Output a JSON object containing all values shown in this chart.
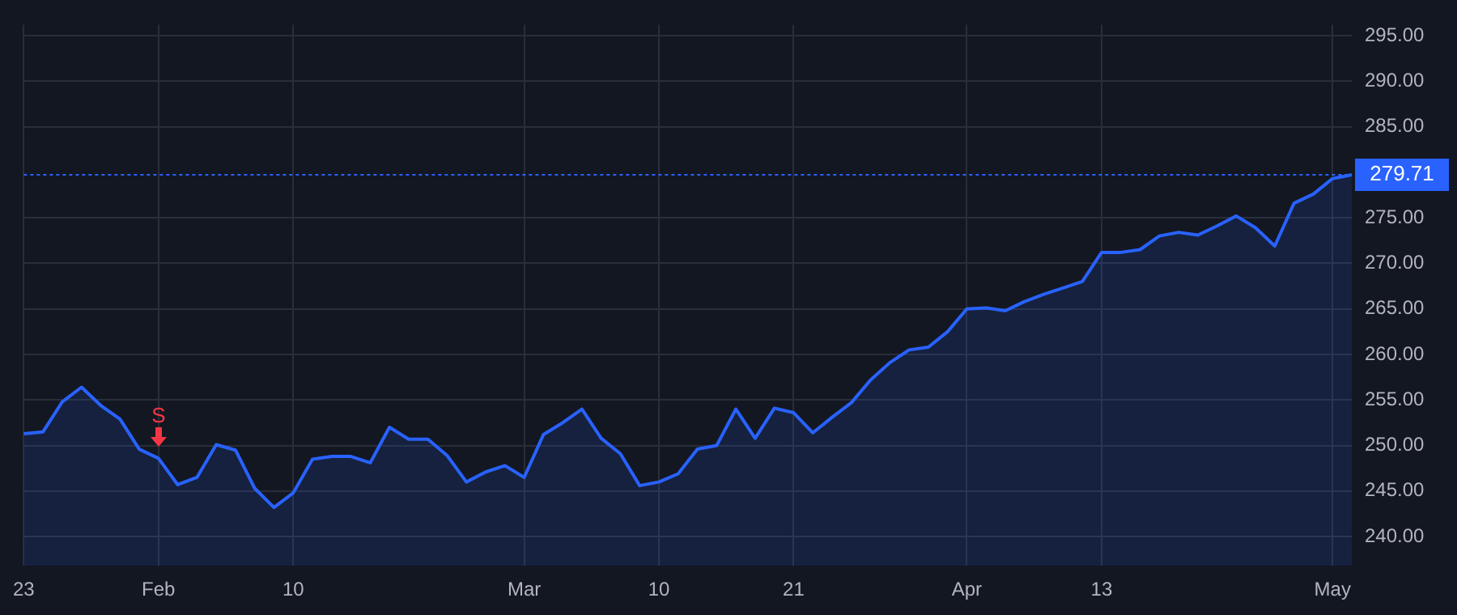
{
  "chart_data": {
    "type": "area",
    "categories": [
      "23",
      null,
      null,
      null,
      null,
      null,
      null,
      "Feb",
      null,
      null,
      null,
      null,
      null,
      null,
      "10",
      null,
      null,
      null,
      null,
      null,
      null,
      null,
      null,
      null,
      null,
      null,
      "Mar",
      null,
      null,
      null,
      null,
      null,
      null,
      "10",
      null,
      null,
      null,
      null,
      null,
      null,
      "21",
      null,
      null,
      null,
      null,
      null,
      null,
      null,
      null,
      "Apr",
      null,
      null,
      null,
      null,
      null,
      null,
      "13",
      null,
      null,
      null,
      null,
      null,
      null,
      null,
      null,
      null,
      null,
      null,
      "May",
      null
    ],
    "series": [
      {
        "color": "#2962ff",
        "values": [
          251.3,
          251.5,
          254.8,
          256.4,
          254.4,
          252.9,
          249.6,
          248.6,
          245.7,
          246.5,
          250.1,
          249.5,
          245.3,
          243.2,
          244.8,
          248.5,
          248.8,
          248.8,
          248.1,
          252.0,
          250.7,
          250.7,
          248.9,
          246.0,
          247.1,
          247.8,
          246.5,
          251.2,
          252.5,
          254.0,
          250.8,
          249.1,
          245.6,
          246.0,
          246.9,
          249.6,
          250.0,
          254.0,
          250.8,
          254.1,
          253.6,
          251.4,
          253.1,
          254.7,
          257.2,
          259.1,
          260.5,
          260.8,
          262.5,
          265.0,
          265.1,
          264.8,
          265.8,
          266.6,
          267.3,
          268.0,
          271.2,
          271.2,
          271.5,
          273.0,
          273.4,
          273.1,
          274.1,
          275.2,
          273.9,
          271.9,
          276.6,
          277.6,
          279.3,
          279.71
        ]
      }
    ],
    "ylim": [
      236.8,
      296.2
    ],
    "yticks": [
      {
        "value": 240,
        "label": "240.00"
      },
      {
        "value": 245,
        "label": "245.00"
      },
      {
        "value": 250,
        "label": "250.00"
      },
      {
        "value": 255,
        "label": "255.00"
      },
      {
        "value": 260,
        "label": "260.00"
      },
      {
        "value": 265,
        "label": "265.00"
      },
      {
        "value": 270,
        "label": "270.00"
      },
      {
        "value": 275,
        "label": "275.00"
      },
      {
        "value": 285,
        "label": "285.00"
      },
      {
        "value": 290,
        "label": "290.00"
      },
      {
        "value": 295,
        "label": "295.00"
      }
    ],
    "ref_lines": [
      {
        "axis": "y",
        "value": 279.71,
        "label": "279.71",
        "color": "#2962ff",
        "line_style": "dotted"
      }
    ],
    "annotations": [
      {
        "text": "S",
        "x": "Feb",
        "y": 248.6
      }
    ],
    "grid": true,
    "legend": false,
    "marker": "none",
    "line_style": "solid"
  }
}
